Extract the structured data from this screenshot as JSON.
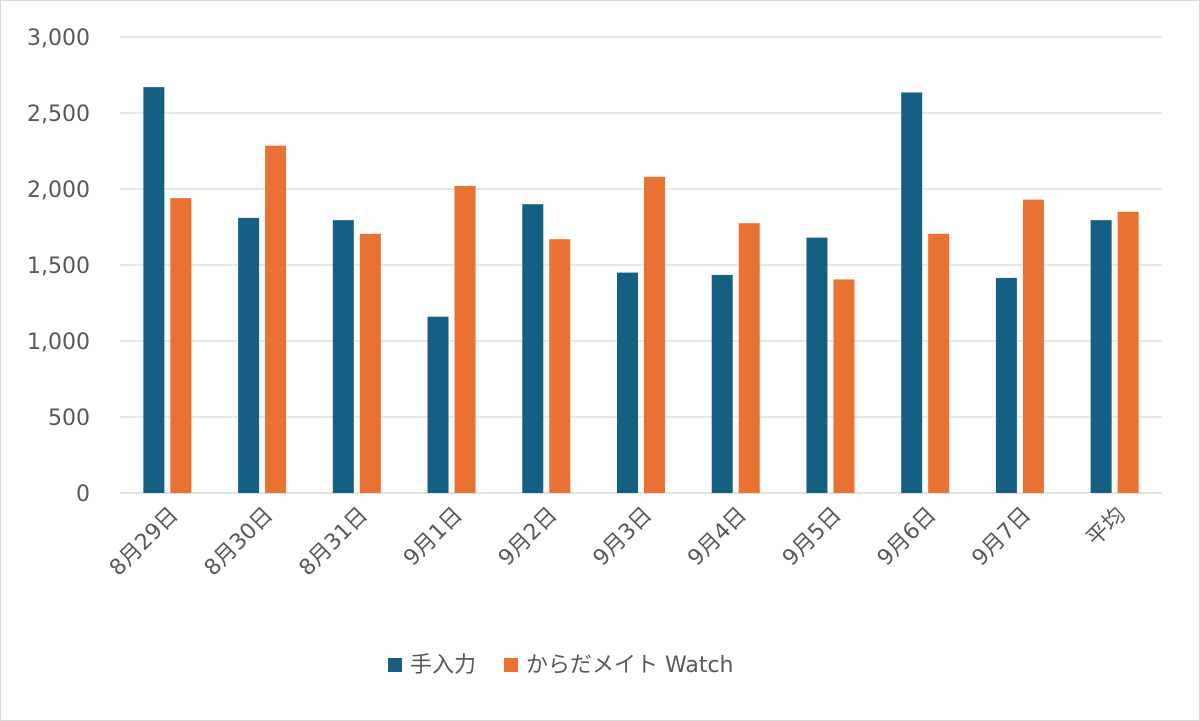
{
  "chart_data": {
    "type": "bar",
    "categories": [
      "8月29日",
      "8月30日",
      "8月31日",
      "9月1日",
      "9月2日",
      "9月3日",
      "9月4日",
      "9月5日",
      "9月6日",
      "9月7日",
      "平均"
    ],
    "series": [
      {
        "name": "手入力",
        "color": "#156082",
        "values": [
          2670,
          1810,
          1795,
          1160,
          1900,
          1450,
          1435,
          1680,
          2635,
          1415,
          1795
        ]
      },
      {
        "name": "からだメイト Watch",
        "color": "#E97132",
        "values": [
          1940,
          2285,
          1705,
          2020,
          1670,
          2080,
          1775,
          1405,
          1705,
          1930,
          1850
        ]
      }
    ],
    "ylim": [
      0,
      3000
    ],
    "yticks": [
      0,
      500,
      1000,
      1500,
      2000,
      2500,
      3000
    ],
    "ytick_labels": [
      "0",
      "500",
      "1,000",
      "1,500",
      "2,000",
      "2,500",
      "3,000"
    ],
    "grid": true,
    "legend_position": "bottom"
  }
}
